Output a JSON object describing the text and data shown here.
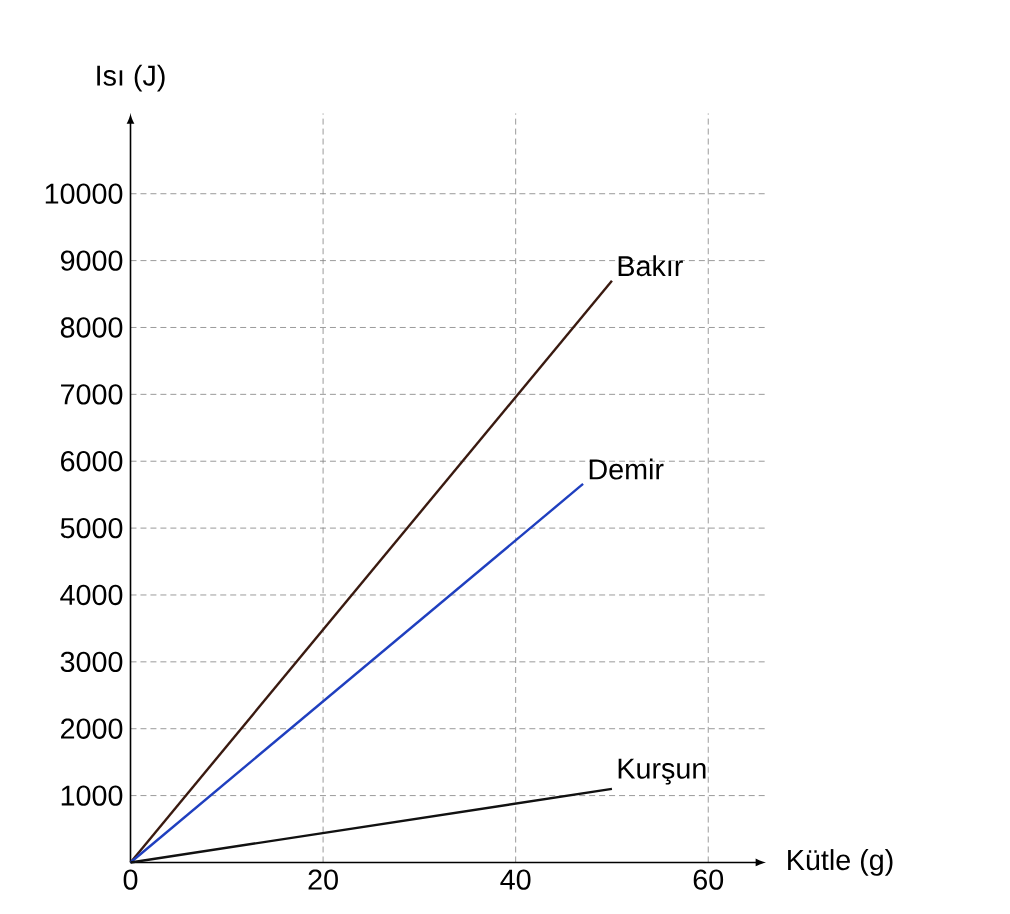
{
  "chart_data": {
    "type": "line",
    "xlabel": "Kütle (g)",
    "ylabel": "Isı (J)",
    "x": [
      0,
      50
    ],
    "series": [
      {
        "name": "Bakır",
        "color": "#3a1a10",
        "values": [
          0,
          8700
        ]
      },
      {
        "name": "Demir",
        "color": "#1f3fbf",
        "x": [
          0,
          47
        ],
        "values": [
          0,
          5660
        ]
      },
      {
        "name": "Kurşun",
        "color": "#111111",
        "values": [
          0,
          1100
        ]
      }
    ],
    "xlim": [
      0,
      66
    ],
    "ylim": [
      0,
      11200
    ],
    "xticks": [
      0,
      20,
      40,
      60
    ],
    "yticks": [
      1000,
      2000,
      3000,
      4000,
      5000,
      6000,
      7000,
      8000,
      9000,
      10000
    ],
    "grid": true,
    "line_style": "solid",
    "marker": "none"
  }
}
